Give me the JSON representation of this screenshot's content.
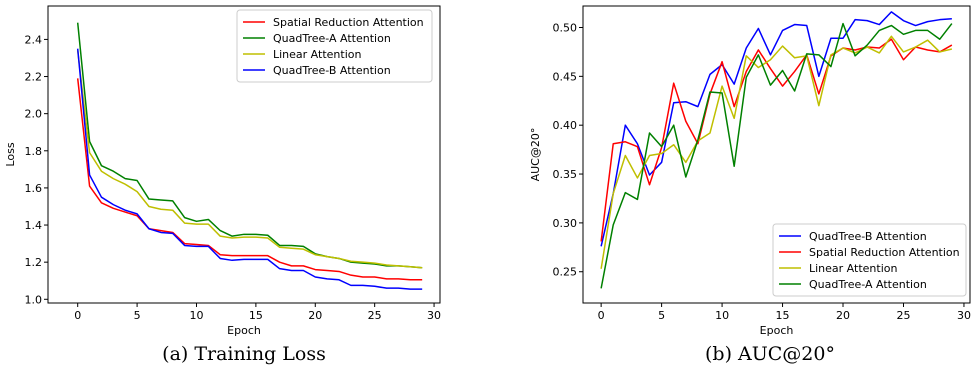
{
  "chart_data": [
    {
      "type": "line",
      "caption": "(a) Training Loss",
      "xlabel": "Epoch",
      "ylabel": "Loss",
      "xlim": [
        -2.5,
        30.5
      ],
      "ylim": [
        0.98,
        2.58
      ],
      "xticks": [
        0,
        5,
        10,
        15,
        20,
        25,
        30
      ],
      "yticks": [
        1.0,
        1.2,
        1.4,
        1.6,
        1.8,
        2.0,
        2.2,
        2.4
      ],
      "grid": false,
      "legend_position": "top-right",
      "series": [
        {
          "name": "Spatial Reduction Attention",
          "color": "#ff0000",
          "x": [
            0,
            1,
            2,
            3,
            4,
            5,
            6,
            7,
            8,
            9,
            10,
            11,
            12,
            13,
            14,
            15,
            16,
            17,
            18,
            19,
            20,
            21,
            22,
            23,
            24,
            25,
            26,
            27,
            28,
            29
          ],
          "y": [
            2.19,
            1.61,
            1.52,
            1.49,
            1.47,
            1.45,
            1.38,
            1.37,
            1.36,
            1.3,
            1.295,
            1.29,
            1.24,
            1.235,
            1.235,
            1.235,
            1.235,
            1.2,
            1.18,
            1.18,
            1.16,
            1.155,
            1.15,
            1.13,
            1.12,
            1.12,
            1.11,
            1.11,
            1.105,
            1.105
          ]
        },
        {
          "name": "QuadTree-A Attention",
          "color": "#008000",
          "x": [
            0,
            1,
            2,
            3,
            4,
            5,
            6,
            7,
            8,
            9,
            10,
            11,
            12,
            13,
            14,
            15,
            16,
            17,
            18,
            19,
            20,
            21,
            22,
            23,
            24,
            25,
            26,
            27,
            28,
            29
          ],
          "y": [
            2.49,
            1.85,
            1.72,
            1.69,
            1.65,
            1.64,
            1.54,
            1.535,
            1.53,
            1.44,
            1.42,
            1.43,
            1.37,
            1.34,
            1.35,
            1.35,
            1.345,
            1.29,
            1.29,
            1.285,
            1.245,
            1.23,
            1.22,
            1.2,
            1.195,
            1.19,
            1.18,
            1.18,
            1.175,
            1.17
          ]
        },
        {
          "name": "Linear Attention",
          "color": "#bfbf00",
          "x": [
            0,
            1,
            2,
            3,
            4,
            5,
            6,
            7,
            8,
            9,
            10,
            11,
            12,
            13,
            14,
            15,
            16,
            17,
            18,
            19,
            20,
            21,
            22,
            23,
            24,
            25,
            26,
            27,
            28,
            29
          ],
          "y": [
            2.34,
            1.79,
            1.69,
            1.65,
            1.62,
            1.58,
            1.5,
            1.485,
            1.48,
            1.41,
            1.405,
            1.405,
            1.34,
            1.33,
            1.335,
            1.335,
            1.33,
            1.28,
            1.275,
            1.27,
            1.24,
            1.23,
            1.22,
            1.205,
            1.2,
            1.195,
            1.185,
            1.18,
            1.175,
            1.17
          ]
        },
        {
          "name": "QuadTree-B Attention",
          "color": "#0000ff",
          "x": [
            0,
            1,
            2,
            3,
            4,
            5,
            6,
            7,
            8,
            9,
            10,
            11,
            12,
            13,
            14,
            15,
            16,
            17,
            18,
            19,
            20,
            21,
            22,
            23,
            24,
            25,
            26,
            27,
            28,
            29
          ],
          "y": [
            2.35,
            1.67,
            1.55,
            1.51,
            1.48,
            1.46,
            1.38,
            1.36,
            1.355,
            1.29,
            1.285,
            1.285,
            1.22,
            1.21,
            1.215,
            1.215,
            1.215,
            1.165,
            1.155,
            1.155,
            1.12,
            1.11,
            1.105,
            1.075,
            1.075,
            1.07,
            1.06,
            1.06,
            1.055,
            1.055
          ]
        }
      ]
    },
    {
      "type": "line",
      "caption": "(b) AUC@20°",
      "xlabel": "Epoch",
      "ylabel": "AUC@20°",
      "xlim": [
        -1.5,
        30.5
      ],
      "ylim": [
        0.218,
        0.522
      ],
      "xticks": [
        0,
        5,
        10,
        15,
        20,
        25,
        30
      ],
      "yticks": [
        0.25,
        0.3,
        0.35,
        0.4,
        0.45,
        0.5
      ],
      "grid": false,
      "legend_position": "bottom-right",
      "series": [
        {
          "name": "QuadTree-B Attention",
          "color": "#0000ff",
          "x": [
            0,
            1,
            2,
            3,
            4,
            5,
            6,
            7,
            8,
            9,
            10,
            11,
            12,
            13,
            14,
            15,
            16,
            17,
            18,
            19,
            20,
            21,
            22,
            23,
            24,
            25,
            26,
            27,
            28,
            29
          ],
          "y": [
            0.276,
            0.33,
            0.4,
            0.381,
            0.349,
            0.362,
            0.423,
            0.424,
            0.419,
            0.452,
            0.462,
            0.442,
            0.479,
            0.499,
            0.472,
            0.497,
            0.503,
            0.502,
            0.45,
            0.489,
            0.489,
            0.508,
            0.507,
            0.503,
            0.516,
            0.507,
            0.502,
            0.506,
            0.508,
            0.509
          ]
        },
        {
          "name": "Spatial Reduction Attention",
          "color": "#ff0000",
          "x": [
            0,
            1,
            2,
            3,
            4,
            5,
            6,
            7,
            8,
            9,
            10,
            11,
            12,
            13,
            14,
            15,
            16,
            17,
            18,
            19,
            20,
            21,
            22,
            23,
            24,
            25,
            26,
            27,
            28,
            29
          ],
          "y": [
            0.281,
            0.381,
            0.383,
            0.378,
            0.339,
            0.377,
            0.443,
            0.404,
            0.381,
            0.432,
            0.465,
            0.419,
            0.455,
            0.477,
            0.458,
            0.44,
            0.455,
            0.472,
            0.432,
            0.471,
            0.479,
            0.477,
            0.48,
            0.479,
            0.488,
            0.467,
            0.48,
            0.477,
            0.475,
            0.482
          ]
        },
        {
          "name": "Linear Attention",
          "color": "#bfbf00",
          "x": [
            0,
            1,
            2,
            3,
            4,
            5,
            6,
            7,
            8,
            9,
            10,
            11,
            12,
            13,
            14,
            15,
            16,
            17,
            18,
            19,
            20,
            21,
            22,
            23,
            24,
            25,
            26,
            27,
            28,
            29
          ],
          "y": [
            0.253,
            0.33,
            0.369,
            0.346,
            0.369,
            0.371,
            0.38,
            0.362,
            0.384,
            0.392,
            0.44,
            0.407,
            0.471,
            0.459,
            0.467,
            0.481,
            0.469,
            0.471,
            0.42,
            0.472,
            0.479,
            0.474,
            0.48,
            0.474,
            0.491,
            0.475,
            0.48,
            0.487,
            0.475,
            0.478
          ]
        },
        {
          "name": "QuadTree-A Attention",
          "color": "#008000",
          "x": [
            0,
            1,
            2,
            3,
            4,
            5,
            6,
            7,
            8,
            9,
            10,
            11,
            12,
            13,
            14,
            15,
            16,
            17,
            18,
            19,
            20,
            21,
            22,
            23,
            24,
            25,
            26,
            27,
            28,
            29
          ],
          "y": [
            0.233,
            0.298,
            0.331,
            0.324,
            0.392,
            0.378,
            0.4,
            0.347,
            0.385,
            0.434,
            0.433,
            0.358,
            0.449,
            0.472,
            0.441,
            0.456,
            0.435,
            0.473,
            0.472,
            0.46,
            0.504,
            0.471,
            0.482,
            0.497,
            0.502,
            0.493,
            0.497,
            0.497,
            0.488,
            0.504
          ]
        }
      ]
    }
  ]
}
